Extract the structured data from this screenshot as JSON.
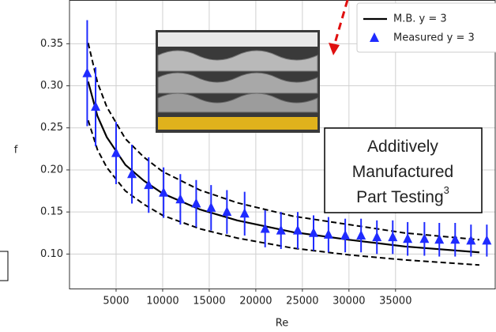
{
  "chart_data": {
    "type": "line",
    "xlabel": "Re",
    "ylabel": "f",
    "xlim": [
      0,
      45700
    ],
    "ylim": [
      0.059,
      0.402
    ],
    "xticks": [
      5000,
      10000,
      15000,
      20000,
      25000,
      30000,
      35000
    ],
    "yticks": [
      {
        "value": 0.1,
        "label": "0.10"
      },
      0.15,
      {
        "value": 0.2,
        "label": "0.20"
      },
      0.25,
      {
        "value": 0.3,
        "label": "0.30"
      },
      0.35
    ],
    "grid": true,
    "legend": "upper right",
    "x": [
      2000,
      3000,
      4000,
      6000,
      8000,
      10000,
      14000,
      18000,
      24000,
      30000,
      36000,
      44000
    ],
    "series": [
      {
        "name": "M.B. y = 3",
        "color": "#000000",
        "values": [
          0.305,
          0.264,
          0.239,
          0.206,
          0.187,
          0.172,
          0.153,
          0.14,
          0.126,
          0.117,
          0.109,
          0.102
        ]
      },
      {
        "name": "Measured y = 3",
        "color": "#1f2bff",
        "marker": "triangle",
        "x": [
          1900,
          2800,
          5000,
          6700,
          8500,
          10100,
          11900,
          13600,
          15200,
          16900,
          18800,
          21000,
          22700,
          24500,
          26200,
          27800,
          29600,
          31300,
          33000,
          34700,
          36300,
          38100,
          39700,
          41400,
          43100,
          44800
        ],
        "values": [
          0.315,
          0.275,
          0.22,
          0.195,
          0.182,
          0.173,
          0.165,
          0.16,
          0.155,
          0.15,
          0.148,
          0.13,
          0.128,
          0.128,
          0.125,
          0.123,
          0.122,
          0.122,
          0.12,
          0.12,
          0.118,
          0.118,
          0.117,
          0.117,
          0.116,
          0.116
        ],
        "errors": [
          0.063,
          0.047,
          0.037,
          0.035,
          0.033,
          0.03,
          0.03,
          0.028,
          0.027,
          0.026,
          0.026,
          0.022,
          0.022,
          0.022,
          0.021,
          0.021,
          0.02,
          0.02,
          0.02,
          0.02,
          0.02,
          0.02,
          0.02,
          0.02,
          0.019,
          0.019
        ]
      }
    ],
    "bounds": [
      {
        "color": "#000000",
        "style": "dashed",
        "values": [
          0.351,
          0.304,
          0.275,
          0.237,
          0.215,
          0.198,
          0.176,
          0.161,
          0.145,
          0.135,
          0.125,
          0.117
        ]
      },
      {
        "color": "#000000",
        "style": "dashed",
        "values": [
          0.259,
          0.224,
          0.203,
          0.175,
          0.159,
          0.146,
          0.13,
          0.119,
          0.107,
          0.099,
          0.093,
          0.087
        ]
      }
    ],
    "annotation": {
      "lines": [
        "Additively",
        "Manufactured",
        "Part Testing"
      ],
      "superscript": "3"
    }
  }
}
